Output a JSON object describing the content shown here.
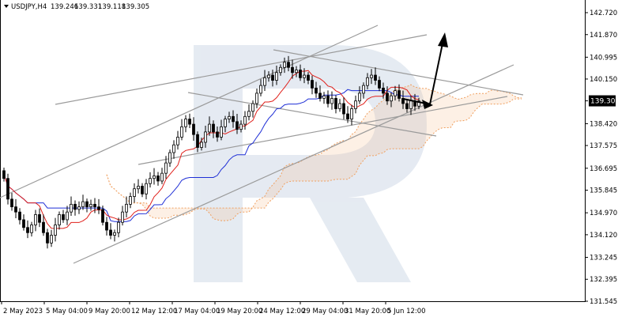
{
  "chart_data": {
    "type": "candlestick",
    "symbol_label": "USDJPY,H4",
    "ohlc_header": [
      "139.246",
      "139.331",
      "139.118",
      "139.305"
    ],
    "current_price": 139.305,
    "current_price_label": "139.305",
    "ylim": [
      131.545,
      142.72
    ],
    "y_ticks": [
      142.72,
      141.87,
      140.995,
      140.15,
      139.305,
      138.42,
      137.575,
      136.695,
      135.845,
      134.97,
      134.12,
      133.245,
      132.395,
      131.545
    ],
    "y_tick_labels": [
      "142.720",
      "141.870",
      "140.995",
      "140.150",
      "139.305",
      "138.420",
      "137.575",
      "136.695",
      "135.845",
      "134.970",
      "134.120",
      "133.245",
      "132.395",
      "131.545"
    ],
    "x_tick_labels": [
      "2 May 2023",
      "5 May 04:00",
      "9 May 20:00",
      "12 May 12:00",
      "17 May 04:00",
      "19 May 20:00",
      "24 May 12:00",
      "29 May 04:00",
      "31 May 20:00",
      "5 Jun 12:00"
    ],
    "closes": [
      136.3,
      135.5,
      135.2,
      135.0,
      134.7,
      134.4,
      134.2,
      134.5,
      134.9,
      134.6,
      134.2,
      133.8,
      134.1,
      134.5,
      134.9,
      134.7,
      135.0,
      135.3,
      135.1,
      135.2,
      135.4,
      135.2,
      135.3,
      135.2,
      135.1,
      134.6,
      134.3,
      134.1,
      134.2,
      134.6,
      135.0,
      135.3,
      135.6,
      135.9,
      136.0,
      135.7,
      136.1,
      136.3,
      136.4,
      136.2,
      136.5,
      136.9,
      137.3,
      137.6,
      137.9,
      138.3,
      138.6,
      138.4,
      138.0,
      137.5,
      137.7,
      138.1,
      138.4,
      138.1,
      137.9,
      138.3,
      138.6,
      138.7,
      138.5,
      138.2,
      138.4,
      138.7,
      138.9,
      139.2,
      139.6,
      139.9,
      140.2,
      140.3,
      140.1,
      140.4,
      140.6,
      140.8,
      140.6,
      140.4,
      140.5,
      140.2,
      140.3,
      140.1,
      139.8,
      139.6,
      139.4,
      139.5,
      139.2,
      139.4,
      139.0,
      139.2,
      138.8,
      138.6,
      139.0,
      139.3,
      139.6,
      139.9,
      140.2,
      140.3,
      140.1,
      139.8,
      139.6,
      139.3,
      139.5,
      139.7,
      139.4,
      139.2,
      139.0,
      139.3,
      139.1,
      139.3
    ]
  }
}
